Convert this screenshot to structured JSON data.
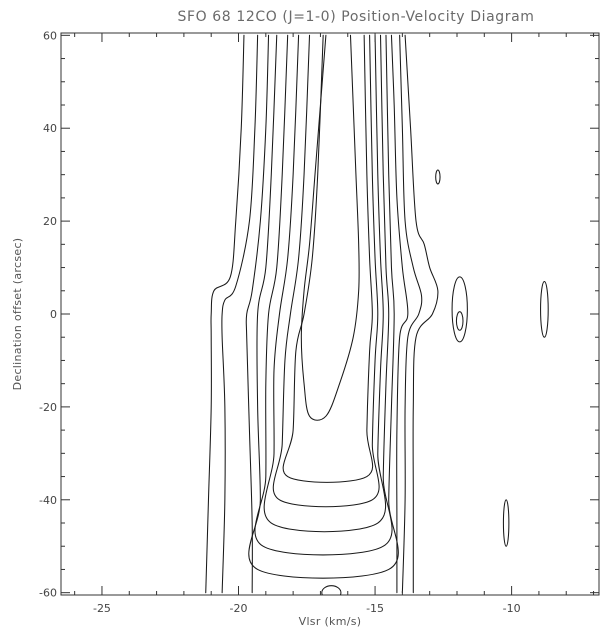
{
  "chart_data": {
    "type": "contour",
    "title": "SFO 68  12CO (J=1-0) Position-Velocity Diagram",
    "xlabel": "Vlsr (km/s)",
    "ylabel": "Declination offset (arcsec)",
    "xlim": [
      -26.5,
      -6.8
    ],
    "ylim": [
      -60.5,
      60.5
    ],
    "xticks": [
      -25,
      -20,
      -15,
      -10
    ],
    "xtick_labels": [
      "-25",
      "-20",
      "-15",
      "-10"
    ],
    "yticks": [
      -60,
      -40,
      -20,
      0,
      20,
      40,
      60
    ],
    "ytick_labels": [
      "-60",
      "-40",
      "-20",
      "0",
      "20",
      "40",
      "60"
    ],
    "grid": false,
    "contours": [
      {
        "level": 1,
        "left": [
          [
            -21.2,
            -60
          ],
          [
            -21.1,
            -40
          ],
          [
            -21.0,
            -20
          ],
          [
            -21.0,
            -5
          ],
          [
            -21.0,
            0
          ],
          [
            -20.9,
            5
          ],
          [
            -20.3,
            8
          ],
          [
            -20.1,
            20
          ],
          [
            -19.9,
            40
          ],
          [
            -19.8,
            60
          ]
        ],
        "right": [
          [
            -13.6,
            -60
          ],
          [
            -13.6,
            -40
          ],
          [
            -13.6,
            -20
          ],
          [
            -13.5,
            -5
          ],
          [
            -12.9,
            0
          ],
          [
            -12.7,
            5
          ],
          [
            -13.0,
            10
          ],
          [
            -13.2,
            15
          ],
          [
            -13.5,
            20
          ],
          [
            -13.7,
            40
          ],
          [
            -13.9,
            60
          ]
        ],
        "bottom_joined": false
      },
      {
        "level": 2,
        "left": [
          [
            -20.6,
            -60
          ],
          [
            -20.5,
            -40
          ],
          [
            -20.5,
            -20
          ],
          [
            -20.6,
            -5
          ],
          [
            -20.6,
            0
          ],
          [
            -20.5,
            3
          ],
          [
            -20.1,
            6
          ],
          [
            -19.6,
            20
          ],
          [
            -19.4,
            40
          ],
          [
            -19.3,
            60
          ]
        ],
        "right": [
          [
            -14.0,
            -60
          ],
          [
            -13.9,
            -40
          ],
          [
            -13.9,
            -20
          ],
          [
            -13.8,
            -5
          ],
          [
            -13.4,
            0
          ],
          [
            -13.3,
            4
          ],
          [
            -13.6,
            10
          ],
          [
            -13.9,
            20
          ],
          [
            -14.0,
            40
          ],
          [
            -14.1,
            60
          ]
        ],
        "bottom_joined": false
      },
      {
        "level": 3,
        "left": [
          [
            -19.5,
            -60
          ],
          [
            -19.5,
            -45
          ],
          [
            -19.6,
            -25
          ],
          [
            -19.7,
            -5
          ],
          [
            -19.7,
            0
          ],
          [
            -19.5,
            5
          ],
          [
            -19.2,
            20
          ],
          [
            -19.0,
            40
          ],
          [
            -18.9,
            60
          ]
        ],
        "right": [
          [
            -14.2,
            -60
          ],
          [
            -14.2,
            -45
          ],
          [
            -14.2,
            -25
          ],
          [
            -14.1,
            -5
          ],
          [
            -13.8,
            0
          ],
          [
            -14.0,
            10
          ],
          [
            -14.2,
            25
          ],
          [
            -14.3,
            45
          ],
          [
            -14.4,
            60
          ]
        ],
        "bottom_joined": false
      },
      {
        "level": 4,
        "left": [
          [
            -19.3,
            -55
          ],
          [
            -19.2,
            -40
          ],
          [
            -19.3,
            -20
          ],
          [
            -19.3,
            0
          ],
          [
            -19.0,
            10
          ],
          [
            -18.8,
            30
          ],
          [
            -18.6,
            60
          ]
        ],
        "right": [
          [
            -14.5,
            -55
          ],
          [
            -14.5,
            -40
          ],
          [
            -14.4,
            -20
          ],
          [
            -14.3,
            0
          ],
          [
            -14.4,
            10
          ],
          [
            -14.5,
            30
          ],
          [
            -14.6,
            60
          ]
        ],
        "bottom_joined": true
      },
      {
        "level": 5,
        "left": [
          [
            -19.1,
            -50
          ],
          [
            -19.0,
            -35
          ],
          [
            -19.0,
            -15
          ],
          [
            -18.9,
            0
          ],
          [
            -18.6,
            10
          ],
          [
            -18.4,
            30
          ],
          [
            -18.2,
            60
          ]
        ],
        "right": [
          [
            -14.7,
            -50
          ],
          [
            -14.7,
            -35
          ],
          [
            -14.6,
            -15
          ],
          [
            -14.5,
            0
          ],
          [
            -14.6,
            10
          ],
          [
            -14.7,
            30
          ],
          [
            -14.8,
            60
          ]
        ],
        "bottom_joined": true
      },
      {
        "level": 6,
        "left": [
          [
            -18.8,
            -45
          ],
          [
            -18.7,
            -30
          ],
          [
            -18.7,
            -12
          ],
          [
            -18.5,
            0
          ],
          [
            -18.2,
            12
          ],
          [
            -18.0,
            30
          ],
          [
            -17.8,
            60
          ]
        ],
        "right": [
          [
            -14.9,
            -45
          ],
          [
            -14.9,
            -30
          ],
          [
            -14.8,
            -12
          ],
          [
            -14.7,
            0
          ],
          [
            -14.8,
            12
          ],
          [
            -14.9,
            30
          ],
          [
            -15.0,
            60
          ]
        ],
        "bottom_joined": true
      },
      {
        "level": 7,
        "left": [
          [
            -18.5,
            -40
          ],
          [
            -18.4,
            -28
          ],
          [
            -18.3,
            -10
          ],
          [
            -18.1,
            0
          ],
          [
            -17.8,
            12
          ],
          [
            -17.6,
            30
          ],
          [
            -17.4,
            60
          ]
        ],
        "right": [
          [
            -15.1,
            -40
          ],
          [
            -15.1,
            -28
          ],
          [
            -15.0,
            -10
          ],
          [
            -14.9,
            0
          ],
          [
            -15.0,
            12
          ],
          [
            -15.1,
            30
          ],
          [
            -15.2,
            60
          ]
        ],
        "bottom_joined": true
      },
      {
        "level": 8,
        "left": [
          [
            -18.2,
            -35
          ],
          [
            -18.0,
            -25
          ],
          [
            -17.9,
            -8
          ],
          [
            -17.6,
            0
          ],
          [
            -17.3,
            12
          ],
          [
            -17.1,
            30
          ],
          [
            -16.9,
            60
          ]
        ],
        "right": [
          [
            -15.3,
            -35
          ],
          [
            -15.3,
            -25
          ],
          [
            -15.2,
            -8
          ],
          [
            -15.1,
            0
          ],
          [
            -15.2,
            12
          ],
          [
            -15.3,
            30
          ],
          [
            -15.4,
            60
          ]
        ],
        "bottom_joined": true
      },
      {
        "level": 9,
        "left": [
          [
            -17.4,
            -22
          ],
          [
            -17.6,
            -15
          ],
          [
            -17.7,
            -5
          ],
          [
            -17.6,
            5
          ],
          [
            -17.4,
            15
          ],
          [
            -17.2,
            30
          ],
          [
            -17.0,
            45
          ],
          [
            -16.8,
            60
          ]
        ],
        "right": [
          [
            -16.8,
            -22
          ],
          [
            -16.3,
            -15
          ],
          [
            -15.8,
            -5
          ],
          [
            -15.6,
            5
          ],
          [
            -15.6,
            15
          ],
          [
            -15.7,
            30
          ],
          [
            -15.8,
            45
          ],
          [
            -15.9,
            60
          ]
        ],
        "bottom_joined": true
      }
    ],
    "islands": [
      {
        "center": [
          -12.7,
          29.5
        ],
        "rx": 0.08,
        "ry": 1.5
      },
      {
        "center": [
          -11.9,
          1.0
        ],
        "rx": 0.28,
        "ry": 7.0
      },
      {
        "center": [
          -11.9,
          -1.5
        ],
        "rx": 0.12,
        "ry": 2.0
      },
      {
        "center": [
          -8.8,
          1.0
        ],
        "rx": 0.14,
        "ry": 6.0
      },
      {
        "center": [
          -10.2,
          -45.0
        ],
        "rx": 0.1,
        "ry": 5.0
      },
      {
        "center": [
          -16.6,
          -60.0
        ],
        "rx": 0.35,
        "ry": 1.5
      }
    ]
  }
}
